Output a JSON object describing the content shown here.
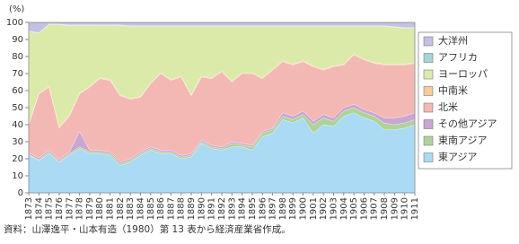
{
  "chart_data": {
    "type": "stacked_area",
    "y_unit_label": "(%)",
    "categories": [
      "1873",
      "1874",
      "1875",
      "1876",
      "1877",
      "1878",
      "1879",
      "1880",
      "1881",
      "1882",
      "1883",
      "1884",
      "1885",
      "1886",
      "1887",
      "1888",
      "1889",
      "1890",
      "1891",
      "1892",
      "1893",
      "1894",
      "1895",
      "1896",
      "1897",
      "1898",
      "1899",
      "1900",
      "1901",
      "1902",
      "1903",
      "1904",
      "1905",
      "1906",
      "1907",
      "1908",
      "1909",
      "1910",
      "1911"
    ],
    "series": [
      {
        "name": "東アジア",
        "color": "#aadaf4",
        "values": [
          22,
          19,
          23,
          18,
          22,
          26,
          23,
          23,
          22,
          16,
          18,
          22,
          25,
          23,
          23,
          20,
          21,
          29,
          26,
          25,
          27,
          27,
          25,
          33,
          35,
          43,
          41,
          44,
          35,
          40,
          39,
          45,
          47,
          44,
          42,
          37,
          37,
          38,
          40
        ]
      },
      {
        "name": "東南アジア",
        "color": "#aed39a",
        "values": [
          0.5,
          0.5,
          1,
          0.5,
          1,
          1,
          1,
          1,
          1,
          1,
          1,
          1,
          1,
          1,
          1,
          1,
          1,
          1,
          1,
          1,
          2,
          1,
          2,
          2,
          2,
          2,
          2,
          2,
          5,
          4,
          3,
          3,
          3,
          3,
          3,
          4,
          3,
          3,
          3
        ]
      },
      {
        "name": "その他アジア",
        "color": "#c9a6d3",
        "values": [
          1,
          1,
          1,
          1,
          1,
          9,
          1,
          1,
          1,
          1,
          1,
          1,
          1,
          1,
          1,
          1,
          1,
          1,
          1,
          1,
          1,
          1,
          1,
          1,
          1,
          2,
          2,
          2,
          2,
          2,
          2,
          2,
          2,
          2,
          2,
          3,
          4,
          4,
          4
        ]
      },
      {
        "name": "北米",
        "color": "#f3b8b3",
        "values": [
          16.5,
          37.5,
          37,
          18.5,
          21,
          22,
          37,
          42,
          42,
          39,
          35,
          32,
          37,
          45,
          41,
          46,
          34,
          37,
          39,
          44,
          35,
          41,
          42,
          31,
          34,
          30,
          30,
          29,
          32,
          26,
          30,
          25,
          29,
          29,
          29,
          31,
          31,
          30,
          29
        ]
      },
      {
        "name": "中南米",
        "color": "#f7cb9c",
        "values": [
          0.5,
          0.5,
          0.5,
          0.5,
          0.5,
          0.5,
          0.5,
          0.5,
          0.5,
          0.5,
          0.5,
          0.5,
          0.5,
          0.5,
          0.5,
          0.5,
          0.5,
          0.5,
          0.5,
          0.5,
          0.5,
          0.5,
          0.5,
          0.5,
          0.5,
          0.5,
          0.5,
          0.5,
          0.5,
          0.5,
          0.5,
          0.5,
          0.5,
          0.5,
          0.5,
          0.5,
          0.5,
          0.5,
          0.5
        ]
      },
      {
        "name": "ヨーロッパ",
        "color": "#dbeaa9",
        "values": [
          54.2,
          35.2,
          36.2,
          60.2,
          52.7,
          39.7,
          35.7,
          30.7,
          31.7,
          40.7,
          42.2,
          41.2,
          33.2,
          27.2,
          31.2,
          29.2,
          40.2,
          29.2,
          30.2,
          26.2,
          32.2,
          27.2,
          27.2,
          30.2,
          25.2,
          20.2,
          22.2,
          20.2,
          23.2,
          25.2,
          23.2,
          22.2,
          16.2,
          19.2,
          21.2,
          22.2,
          21.7,
          21.2,
          20.2
        ]
      },
      {
        "name": "アフリカ",
        "color": "#a3d6d2",
        "values": [
          0.3,
          0.3,
          0.3,
          0.3,
          0.3,
          0.3,
          0.3,
          0.3,
          0.3,
          0.3,
          0.3,
          0.3,
          0.3,
          0.3,
          0.3,
          0.3,
          0.3,
          0.3,
          0.3,
          0.3,
          0.3,
          0.3,
          0.3,
          0.3,
          0.3,
          0.3,
          0.3,
          0.3,
          0.3,
          0.3,
          0.3,
          0.3,
          0.3,
          0.3,
          0.3,
          0.3,
          0.3,
          0.3,
          0.3
        ]
      },
      {
        "name": "大洋州",
        "color": "#c5c1e2",
        "values": [
          5,
          6,
          1,
          1,
          1.5,
          1.5,
          1.5,
          1.5,
          1.5,
          1.5,
          2,
          2,
          2,
          2,
          2,
          2,
          2,
          2,
          2,
          2,
          2,
          2,
          2,
          2,
          2,
          2,
          2,
          2,
          2,
          2,
          2,
          2,
          2,
          2,
          2,
          2,
          2.5,
          3,
          3
        ]
      }
    ],
    "ylim": [
      0,
      100
    ],
    "yticks": [
      0,
      10,
      20,
      30,
      40,
      50,
      60,
      70,
      80,
      90,
      100
    ],
    "source": "資料：山澤逸平・山本有造（1980）第 13 表から経済産業省作成。"
  }
}
